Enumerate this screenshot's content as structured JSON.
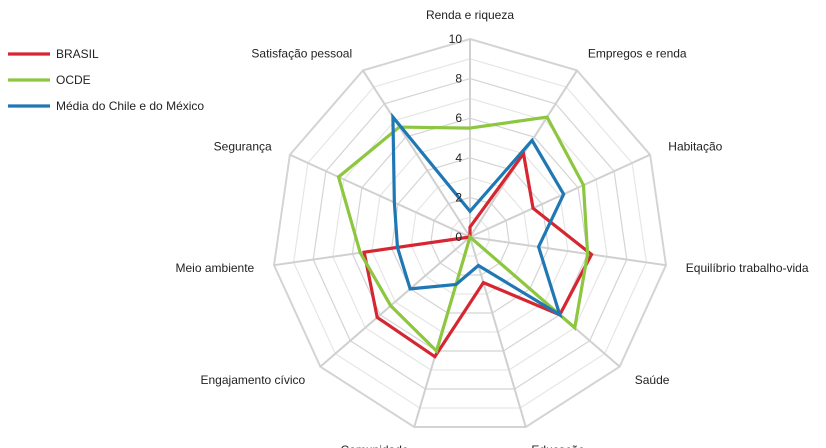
{
  "chart_data": {
    "type": "radar",
    "categories": [
      "Renda e riqueza",
      "Empregos e renda",
      "Habitação",
      "Equilíbrio trabalho-vida",
      "Saúde",
      "Educação",
      "Comunidade",
      "Engajamento cívico",
      "Meio ambiente",
      "Segurança",
      "Satisfação pessoal"
    ],
    "r_ticks": [
      0,
      2,
      4,
      6,
      8,
      10
    ],
    "r_range": [
      0,
      10
    ],
    "grid": true,
    "legend_position": "top-left",
    "series": [
      {
        "name": "BRASIL",
        "color": "#d62631",
        "values": [
          0.5,
          5.0,
          3.5,
          6.2,
          6.0,
          2.4,
          6.3,
          6.2,
          5.4,
          0.0,
          0.0
        ]
      },
      {
        "name": "OCDE",
        "color": "#8dc63f",
        "values": [
          5.5,
          7.2,
          6.3,
          6.0,
          7.0,
          0.0,
          6.0,
          5.3,
          5.6,
          7.3,
          6.6
        ]
      },
      {
        "name": "Média do Chile e do México",
        "color": "#1f78b4",
        "values": [
          1.3,
          5.8,
          5.2,
          3.5,
          6.0,
          1.5,
          2.5,
          4.0,
          3.7,
          4.2,
          7.2
        ]
      }
    ]
  }
}
